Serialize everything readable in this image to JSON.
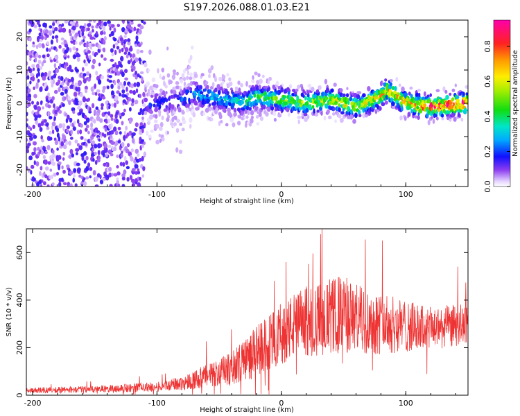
{
  "title": "S197.2026.088.01.03.E21",
  "chart_data": [
    {
      "type": "heatmap",
      "name": "spectrogram",
      "xlabel": "Height of straight line (km)",
      "ylabel": "Frequency (Hz)",
      "xlim": [
        -205,
        150
      ],
      "ylim": [
        -25,
        25
      ],
      "x_ticks": [
        -200,
        -100,
        0,
        100
      ],
      "y_ticks": [
        -20,
        -10,
        0,
        10,
        20
      ],
      "colorbar": {
        "label": "Normalized spectral amplitude",
        "range": [
          0,
          0.95
        ],
        "ticks": [
          0.0,
          0.2,
          0.4,
          0.6,
          0.8
        ],
        "tick_labels": [
          "0.0",
          "0.2",
          "0.4",
          "0.6",
          "0.8"
        ]
      },
      "ridge": {
        "description_points_x": [
          -100,
          -80,
          -70,
          -60,
          -40,
          -30,
          -20,
          0,
          20,
          40,
          60,
          80,
          85,
          100,
          120,
          150
        ],
        "frequency_hz": [
          0,
          1,
          3,
          2,
          1,
          0,
          2,
          1,
          0,
          1,
          -1,
          2,
          4,
          0,
          -1,
          0
        ],
        "peak_amplitude": [
          0.15,
          0.2,
          0.25,
          0.3,
          0.3,
          0.35,
          0.45,
          0.5,
          0.55,
          0.6,
          0.6,
          0.65,
          0.7,
          0.7,
          0.85,
          0.9
        ]
      }
    },
    {
      "type": "line",
      "name": "snr",
      "xlabel": "Height of straight line (km)",
      "ylabel": "SNR (10 * v/v)",
      "xlim": [
        -205,
        150
      ],
      "ylim": [
        0,
        700
      ],
      "x_ticks": [
        -200,
        -100,
        0,
        100
      ],
      "y_ticks": [
        0,
        200,
        400,
        600
      ],
      "color": "#ee3333",
      "envelope_x": [
        -205,
        -150,
        -100,
        -80,
        -60,
        -40,
        -30,
        -20,
        -10,
        0,
        10,
        20,
        40,
        50,
        60,
        80,
        100,
        120,
        150
      ],
      "envelope_mean": [
        20,
        25,
        35,
        50,
        80,
        110,
        150,
        180,
        220,
        260,
        290,
        310,
        330,
        340,
        320,
        300,
        290,
        280,
        300
      ],
      "envelope_spread": [
        12,
        15,
        20,
        30,
        50,
        70,
        90,
        110,
        120,
        130,
        140,
        150,
        160,
        170,
        150,
        130,
        110,
        90,
        90
      ]
    }
  ]
}
